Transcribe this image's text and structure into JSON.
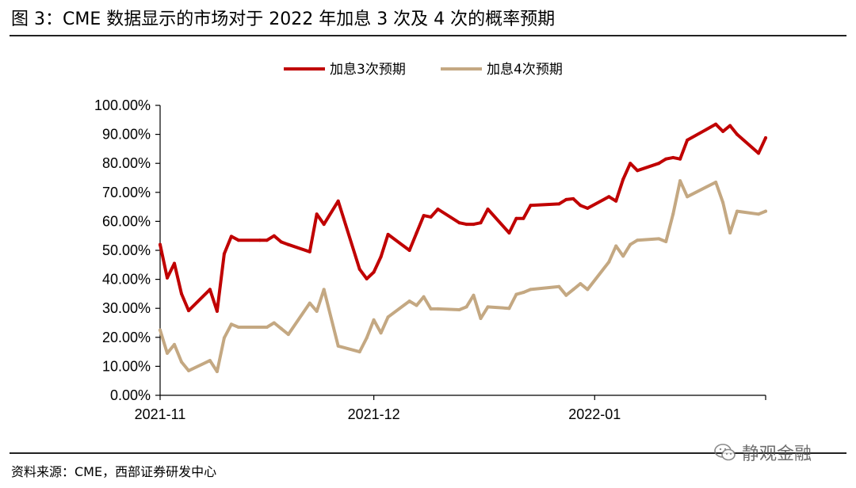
{
  "figure": {
    "title": "图 3：CME 数据显示的市场对于 2022 年加息 3 次及 4 次的概率预期",
    "source": "资料来源：CME，西部证券研发中心",
    "watermark": "静观金融"
  },
  "chart_data": {
    "type": "line",
    "title": "",
    "xlabel": "",
    "ylabel": "",
    "x_tick_labels": [
      "2021-11",
      "2021-12",
      "2022-01"
    ],
    "x_tick_dates": [
      "2021-11-01",
      "2021-12-01",
      "2022-01-01"
    ],
    "x_range": [
      "2021-11-01",
      "2022-01-25"
    ],
    "ylim": [
      0,
      100
    ],
    "y_tick_values": [
      0,
      10,
      20,
      30,
      40,
      50,
      60,
      70,
      80,
      90,
      100
    ],
    "y_tick_labels": [
      "0.00%",
      "10.00%",
      "20.00%",
      "30.00%",
      "40.00%",
      "50.00%",
      "60.00%",
      "70.00%",
      "80.00%",
      "90.00%",
      "100.00%"
    ],
    "grid": false,
    "legend_position": "top-center",
    "colors": {
      "series1": "#c00000",
      "series2": "#c4a882"
    },
    "x": [
      "2021-11-01",
      "2021-11-02",
      "2021-11-03",
      "2021-11-04",
      "2021-11-05",
      "2021-11-08",
      "2021-11-09",
      "2021-11-10",
      "2021-11-11",
      "2021-11-12",
      "2021-11-15",
      "2021-11-16",
      "2021-11-17",
      "2021-11-18",
      "2021-11-19",
      "2021-11-22",
      "2021-11-23",
      "2021-11-24",
      "2021-11-26",
      "2021-11-29",
      "2021-11-30",
      "2021-12-01",
      "2021-12-02",
      "2021-12-03",
      "2021-12-06",
      "2021-12-07",
      "2021-12-08",
      "2021-12-09",
      "2021-12-10",
      "2021-12-13",
      "2021-12-14",
      "2021-12-15",
      "2021-12-16",
      "2021-12-17",
      "2021-12-20",
      "2021-12-21",
      "2021-12-22",
      "2021-12-23",
      "2021-12-27",
      "2021-12-28",
      "2021-12-29",
      "2021-12-30",
      "2021-12-31",
      "2022-01-03",
      "2022-01-04",
      "2022-01-05",
      "2022-01-06",
      "2022-01-07",
      "2022-01-10",
      "2022-01-11",
      "2022-01-12",
      "2022-01-13",
      "2022-01-14",
      "2022-01-18",
      "2022-01-19",
      "2022-01-20",
      "2022-01-21",
      "2022-01-24",
      "2022-01-25"
    ],
    "series": [
      {
        "name": "加息3次预期",
        "values": [
          52.0,
          40.5,
          45.5,
          35.0,
          29.2,
          36.5,
          29.0,
          48.8,
          54.8,
          53.5,
          53.5,
          53.5,
          55.0,
          52.9,
          52.0,
          49.5,
          62.5,
          59.0,
          67.0,
          43.5,
          40.2,
          42.5,
          47.8,
          55.5,
          50.0,
          56.0,
          62.0,
          61.5,
          64.2,
          59.5,
          59.0,
          59.0,
          59.5,
          64.2,
          56.0,
          61.0,
          61.0,
          65.5,
          66.0,
          67.5,
          67.8,
          65.5,
          64.5,
          68.5,
          67.0,
          74.5,
          80.0,
          77.5,
          80.0,
          81.5,
          82.0,
          81.5,
          88.0,
          93.5,
          91.0,
          93.0,
          90.0,
          83.5,
          88.8
        ]
      },
      {
        "name": "加息4次预期",
        "values": [
          22.5,
          14.5,
          17.5,
          11.5,
          8.5,
          12.0,
          8.2,
          19.8,
          24.5,
          23.5,
          23.5,
          23.5,
          25.0,
          23.0,
          21.0,
          31.8,
          29.0,
          36.5,
          17.0,
          15.0,
          19.8,
          26.0,
          21.5,
          27.0,
          32.5,
          31.0,
          34.0,
          29.8,
          29.8,
          29.5,
          30.5,
          34.5,
          26.5,
          30.5,
          30.0,
          34.8,
          35.5,
          36.5,
          37.5,
          34.5,
          36.5,
          38.5,
          36.5,
          46.0,
          51.5,
          48.0,
          52.0,
          53.5,
          54.0,
          53.0,
          62.5,
          74.0,
          68.5,
          73.5,
          66.5,
          56.0,
          63.5,
          62.5,
          63.5
        ]
      }
    ]
  }
}
